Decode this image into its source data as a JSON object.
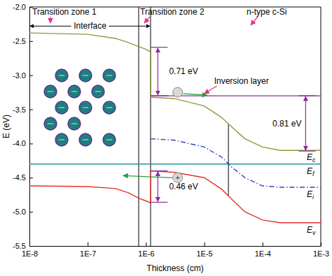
{
  "chart_data": {
    "type": "line",
    "x_label": "Thickness (cm)",
    "y_label": "E (eV)",
    "log": "x",
    "xlim": [
      1e-08,
      0.001
    ],
    "xticks": [
      {
        "value": 1e-08,
        "label": "1E-8"
      },
      {
        "value": 1e-07,
        "label": "1E-7"
      },
      {
        "value": 1e-06,
        "label": "1E-6"
      },
      {
        "value": 1e-05,
        "label": "1E-5"
      },
      {
        "value": 0.0001,
        "label": "1E-4"
      },
      {
        "value": 0.001,
        "label": "1E-3"
      }
    ],
    "ylim": [
      -5.5,
      -2.0
    ],
    "yticks": [
      -5.5,
      {
        "value": -5,
        "label": "-5.0"
      },
      -4.5,
      {
        "value": -4,
        "label": "-4.0"
      },
      -3.5,
      {
        "value": -3,
        "label": "-3.0"
      },
      -2.5,
      {
        "value": -2,
        "label": "-2.0"
      }
    ],
    "series": [
      {
        "name": "Ec",
        "color": "#8c9a3a",
        "line_style": "solid",
        "x": [
          1e-08,
          1e-07,
          3e-07,
          5e-07,
          7.5e-07,
          1e-06,
          1.2e-06,
          1.2e-06,
          3e-06,
          1e-05,
          2e-05,
          3e-05,
          5e-05,
          0.0001,
          0.0002,
          0.001
        ],
        "values": [
          -2.38,
          -2.4,
          -2.46,
          -2.52,
          -2.58,
          -2.62,
          -2.66,
          -3.32,
          -3.34,
          -3.45,
          -3.62,
          -3.76,
          -3.93,
          -4.05,
          -4.1,
          -4.1
        ]
      },
      {
        "name": "Ef",
        "color": "#1f9a9e",
        "line_style": "solid",
        "x": [
          1e-08,
          0.001
        ],
        "values": [
          -4.3,
          -4.3
        ]
      },
      {
        "name": "Ei",
        "color": "#3040c8",
        "line_style": "dashdot",
        "x": [
          1.2e-06,
          3e-06,
          1e-05,
          2e-05,
          3e-05,
          5e-05,
          0.0001,
          0.0002,
          0.001
        ],
        "values": [
          -3.93,
          -3.95,
          -4.05,
          -4.2,
          -4.35,
          -4.5,
          -4.62,
          -4.64,
          -4.64
        ]
      },
      {
        "name": "Ev",
        "color": "#e8302c",
        "line_style": "solid",
        "x": [
          1e-08,
          1e-07,
          3e-07,
          5e-07,
          7.5e-07,
          1e-06,
          1.2e-06,
          1.2e-06,
          3e-06,
          1e-05,
          2e-05,
          3e-05,
          5e-05,
          0.0001,
          0.0002,
          0.001
        ],
        "values": [
          -4.62,
          -4.63,
          -4.66,
          -4.72,
          -4.8,
          -4.84,
          -4.87,
          -4.4,
          -4.42,
          -4.5,
          -4.67,
          -4.82,
          -5.0,
          -5.12,
          -5.16,
          -5.16
        ]
      }
    ],
    "annotations": [
      "Transition zone 1",
      "Transition zone 2",
      "n-type c-Si"
    ],
    "boundaries": [
      7.5e-07,
      1.2e-06
    ],
    "interface": {
      "label": "Interface",
      "x": [
        1e-08,
        1.2e-06
      ],
      "y": -2.28
    },
    "inversion": {
      "label": "Inversion layer",
      "x": [
        1.2e-06,
        0.001
      ],
      "y": -3.3
    },
    "gaps": [
      {
        "label": "0.71 eV",
        "x": 1.6e-06,
        "y": [
          -2.59,
          -3.3
        ]
      },
      {
        "label": "0.81 eV",
        "x": 0.00055,
        "y": [
          -3.3,
          -4.11
        ]
      },
      {
        "label": "0.46 eV",
        "x": 1.6e-06,
        "y": [
          -4.4,
          -4.86
        ]
      }
    ],
    "depletion_edge": {
      "x": 2.6e-05,
      "y": [
        -3.71,
        -4.76
      ]
    },
    "electron": {
      "x": 3.5e-06,
      "y": -3.25
    },
    "hole": {
      "x": 3.5e-06,
      "y": -4.5,
      "label": "+"
    }
  }
}
